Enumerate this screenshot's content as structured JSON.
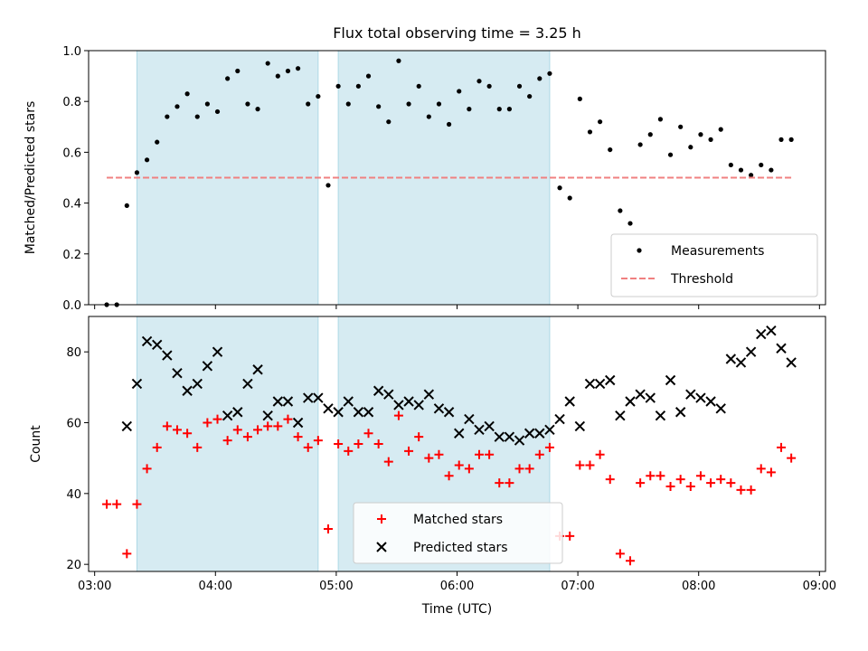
{
  "chart_data": [
    {
      "type": "scatter",
      "title": "Flux total observing time = 3.25 h",
      "xlabel": "",
      "ylabel": "Matched/Predicted stars",
      "xlim": [
        "02:57",
        "09:03"
      ],
      "ylim": [
        0,
        1.0
      ],
      "yticks": [
        "0.0",
        "0.2",
        "0.4",
        "0.6",
        "0.8",
        "1.0"
      ],
      "xticks": [
        "03:00",
        "04:00",
        "05:00",
        "06:00",
        "07:00",
        "08:00",
        "09:00"
      ],
      "shaded_intervals": [
        [
          "03:21",
          "04:51"
        ],
        [
          "05:01",
          "06:46"
        ]
      ],
      "shade_color": "#add8e6",
      "grid": false,
      "legend_position": "lower-right",
      "series": [
        {
          "name": "Measurements",
          "marker": "dot",
          "color": "#000000",
          "points": [
            [
              "03:06",
              0.0
            ],
            [
              "03:11",
              0.0
            ],
            [
              "03:16",
              0.39
            ],
            [
              "03:21",
              0.52
            ],
            [
              "03:26",
              0.57
            ],
            [
              "03:31",
              0.64
            ],
            [
              "03:36",
              0.74
            ],
            [
              "03:41",
              0.78
            ],
            [
              "03:46",
              0.83
            ],
            [
              "03:51",
              0.74
            ],
            [
              "03:56",
              0.79
            ],
            [
              "04:01",
              0.76
            ],
            [
              "04:06",
              0.89
            ],
            [
              "04:11",
              0.92
            ],
            [
              "04:16",
              0.79
            ],
            [
              "04:21",
              0.77
            ],
            [
              "04:26",
              0.95
            ],
            [
              "04:31",
              0.9
            ],
            [
              "04:36",
              0.92
            ],
            [
              "04:41",
              0.93
            ],
            [
              "04:46",
              0.79
            ],
            [
              "04:51",
              0.82
            ],
            [
              "04:56",
              0.47
            ],
            [
              "05:01",
              0.86
            ],
            [
              "05:06",
              0.79
            ],
            [
              "05:11",
              0.86
            ],
            [
              "05:16",
              0.9
            ],
            [
              "05:21",
              0.78
            ],
            [
              "05:26",
              0.72
            ],
            [
              "05:31",
              0.96
            ],
            [
              "05:36",
              0.79
            ],
            [
              "05:41",
              0.86
            ],
            [
              "05:46",
              0.74
            ],
            [
              "05:51",
              0.79
            ],
            [
              "05:56",
              0.71
            ],
            [
              "06:01",
              0.84
            ],
            [
              "06:06",
              0.77
            ],
            [
              "06:11",
              0.88
            ],
            [
              "06:16",
              0.86
            ],
            [
              "06:21",
              0.77
            ],
            [
              "06:26",
              0.77
            ],
            [
              "06:31",
              0.86
            ],
            [
              "06:36",
              0.82
            ],
            [
              "06:41",
              0.89
            ],
            [
              "06:46",
              0.91
            ],
            [
              "06:51",
              0.46
            ],
            [
              "06:56",
              0.42
            ],
            [
              "07:01",
              0.81
            ],
            [
              "07:06",
              0.68
            ],
            [
              "07:11",
              0.72
            ],
            [
              "07:16",
              0.61
            ],
            [
              "07:21",
              0.37
            ],
            [
              "07:26",
              0.32
            ],
            [
              "07:31",
              0.63
            ],
            [
              "07:36",
              0.67
            ],
            [
              "07:41",
              0.73
            ],
            [
              "07:46",
              0.59
            ],
            [
              "07:51",
              0.7
            ],
            [
              "07:56",
              0.62
            ],
            [
              "08:01",
              0.67
            ],
            [
              "08:06",
              0.65
            ],
            [
              "08:11",
              0.69
            ],
            [
              "08:16",
              0.55
            ],
            [
              "08:21",
              0.53
            ],
            [
              "08:26",
              0.51
            ],
            [
              "08:31",
              0.55
            ],
            [
              "08:36",
              0.53
            ],
            [
              "08:41",
              0.65
            ],
            [
              "08:46",
              0.65
            ]
          ]
        },
        {
          "name": "Threshold",
          "marker": "dashed-line",
          "color": "#f08080",
          "points": [
            [
              "03:06",
              0.5
            ],
            [
              "08:46",
              0.5
            ]
          ]
        }
      ]
    },
    {
      "type": "scatter",
      "title": "",
      "xlabel": "Time (UTC)",
      "ylabel": "Count",
      "xlim": [
        "02:57",
        "09:03"
      ],
      "ylim": [
        18,
        90
      ],
      "yticks": [
        "20",
        "40",
        "60",
        "80"
      ],
      "xticks": [
        "03:00",
        "04:00",
        "05:00",
        "06:00",
        "07:00",
        "08:00",
        "09:00"
      ],
      "shaded_intervals": [
        [
          "03:21",
          "04:51"
        ],
        [
          "05:01",
          "06:46"
        ]
      ],
      "shade_color": "#add8e6",
      "grid": false,
      "legend_position": "lower-center",
      "series": [
        {
          "name": "Matched stars",
          "marker": "plus",
          "color": "#ff0000",
          "points": [
            [
              "03:06",
              37
            ],
            [
              "03:11",
              37
            ],
            [
              "03:16",
              23
            ],
            [
              "03:21",
              37
            ],
            [
              "03:26",
              47
            ],
            [
              "03:31",
              53
            ],
            [
              "03:36",
              59
            ],
            [
              "03:41",
              58
            ],
            [
              "03:46",
              57
            ],
            [
              "03:51",
              53
            ],
            [
              "03:56",
              60
            ],
            [
              "04:01",
              61
            ],
            [
              "04:06",
              55
            ],
            [
              "04:11",
              58
            ],
            [
              "04:16",
              56
            ],
            [
              "04:21",
              58
            ],
            [
              "04:26",
              59
            ],
            [
              "04:31",
              59
            ],
            [
              "04:36",
              61
            ],
            [
              "04:41",
              56
            ],
            [
              "04:46",
              53
            ],
            [
              "04:51",
              55
            ],
            [
              "04:56",
              30
            ],
            [
              "05:01",
              54
            ],
            [
              "05:06",
              52
            ],
            [
              "05:11",
              54
            ],
            [
              "05:16",
              57
            ],
            [
              "05:21",
              54
            ],
            [
              "05:26",
              49
            ],
            [
              "05:31",
              62
            ],
            [
              "05:36",
              52
            ],
            [
              "05:41",
              56
            ],
            [
              "05:46",
              50
            ],
            [
              "05:51",
              51
            ],
            [
              "05:56",
              45
            ],
            [
              "06:01",
              48
            ],
            [
              "06:06",
              47
            ],
            [
              "06:11",
              51
            ],
            [
              "06:16",
              51
            ],
            [
              "06:21",
              43
            ],
            [
              "06:26",
              43
            ],
            [
              "06:31",
              47
            ],
            [
              "06:36",
              47
            ],
            [
              "06:41",
              51
            ],
            [
              "06:46",
              53
            ],
            [
              "06:51",
              28
            ],
            [
              "06:56",
              28
            ],
            [
              "07:01",
              48
            ],
            [
              "07:06",
              48
            ],
            [
              "07:11",
              51
            ],
            [
              "07:16",
              44
            ],
            [
              "07:21",
              23
            ],
            [
              "07:26",
              21
            ],
            [
              "07:31",
              43
            ],
            [
              "07:36",
              45
            ],
            [
              "07:41",
              45
            ],
            [
              "07:46",
              42
            ],
            [
              "07:51",
              44
            ],
            [
              "07:56",
              42
            ],
            [
              "08:01",
              45
            ],
            [
              "08:06",
              43
            ],
            [
              "08:11",
              44
            ],
            [
              "08:16",
              43
            ],
            [
              "08:21",
              41
            ],
            [
              "08:26",
              41
            ],
            [
              "08:31",
              47
            ],
            [
              "08:36",
              46
            ],
            [
              "08:41",
              53
            ],
            [
              "08:46",
              50
            ]
          ]
        },
        {
          "name": "Predicted stars",
          "marker": "x",
          "color": "#000000",
          "points": [
            [
              "03:16",
              59
            ],
            [
              "03:21",
              71
            ],
            [
              "03:26",
              83
            ],
            [
              "03:31",
              82
            ],
            [
              "03:36",
              79
            ],
            [
              "03:41",
              74
            ],
            [
              "03:46",
              69
            ],
            [
              "03:51",
              71
            ],
            [
              "03:56",
              76
            ],
            [
              "04:01",
              80
            ],
            [
              "04:06",
              62
            ],
            [
              "04:11",
              63
            ],
            [
              "04:16",
              71
            ],
            [
              "04:21",
              75
            ],
            [
              "04:26",
              62
            ],
            [
              "04:31",
              66
            ],
            [
              "04:36",
              66
            ],
            [
              "04:41",
              60
            ],
            [
              "04:46",
              67
            ],
            [
              "04:51",
              67
            ],
            [
              "04:56",
              64
            ],
            [
              "05:01",
              63
            ],
            [
              "05:06",
              66
            ],
            [
              "05:11",
              63
            ],
            [
              "05:16",
              63
            ],
            [
              "05:21",
              69
            ],
            [
              "05:26",
              68
            ],
            [
              "05:31",
              65
            ],
            [
              "05:36",
              66
            ],
            [
              "05:41",
              65
            ],
            [
              "05:46",
              68
            ],
            [
              "05:51",
              64
            ],
            [
              "05:56",
              63
            ],
            [
              "06:01",
              57
            ],
            [
              "06:06",
              61
            ],
            [
              "06:11",
              58
            ],
            [
              "06:16",
              59
            ],
            [
              "06:21",
              56
            ],
            [
              "06:26",
              56
            ],
            [
              "06:31",
              55
            ],
            [
              "06:36",
              57
            ],
            [
              "06:41",
              57
            ],
            [
              "06:46",
              58
            ],
            [
              "06:51",
              61
            ],
            [
              "06:56",
              66
            ],
            [
              "07:01",
              59
            ],
            [
              "07:06",
              71
            ],
            [
              "07:11",
              71
            ],
            [
              "07:16",
              72
            ],
            [
              "07:21",
              62
            ],
            [
              "07:26",
              66
            ],
            [
              "07:31",
              68
            ],
            [
              "07:36",
              67
            ],
            [
              "07:41",
              62
            ],
            [
              "07:46",
              72
            ],
            [
              "07:51",
              63
            ],
            [
              "07:56",
              68
            ],
            [
              "08:01",
              67
            ],
            [
              "08:06",
              66
            ],
            [
              "08:11",
              64
            ],
            [
              "08:16",
              78
            ],
            [
              "08:21",
              77
            ],
            [
              "08:26",
              80
            ],
            [
              "08:31",
              85
            ],
            [
              "08:36",
              86
            ],
            [
              "08:41",
              81
            ],
            [
              "08:46",
              77
            ]
          ]
        }
      ]
    }
  ]
}
